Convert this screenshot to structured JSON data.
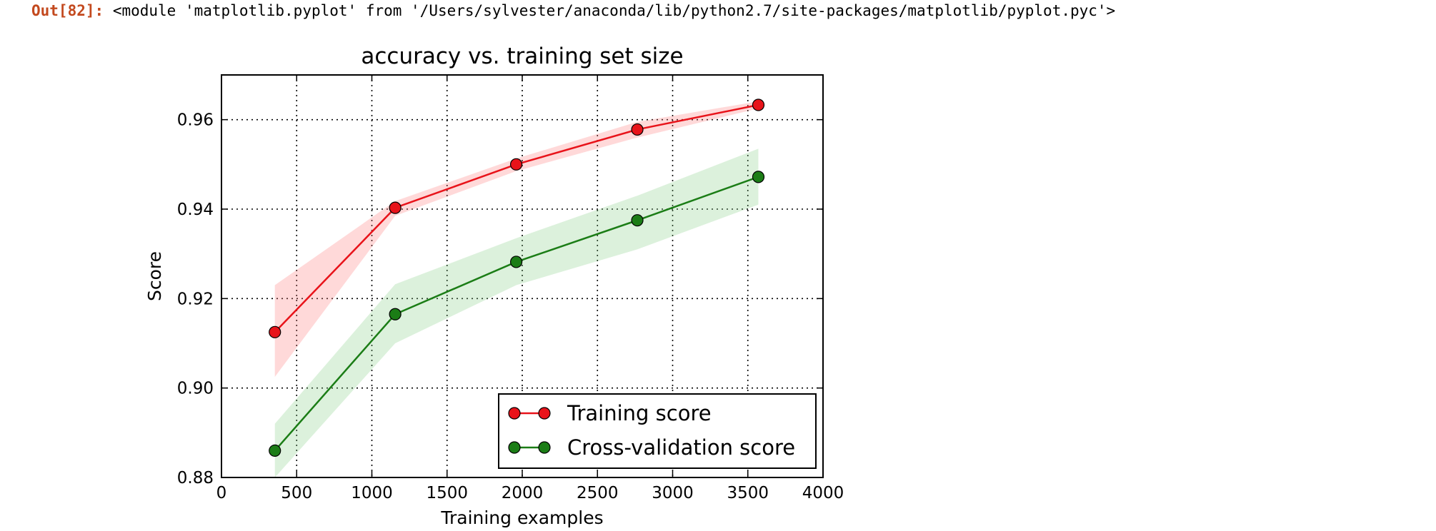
{
  "output": {
    "prompt": "Out[82]:",
    "repr": "<module 'matplotlib.pyplot' from '/Users/sylvester/anaconda/lib/python2.7/site-packages/matplotlib/pyplot.pyc'>"
  },
  "chart_data": {
    "type": "line",
    "title": "accuracy vs. training set size",
    "xlabel": "Training examples",
    "ylabel": "Score",
    "xlim": [
      0,
      4000
    ],
    "ylim": [
      0.88,
      0.97
    ],
    "xticks": [
      0,
      500,
      1000,
      1500,
      2000,
      2500,
      3000,
      3500,
      4000
    ],
    "yticks": [
      0.88,
      0.9,
      0.92,
      0.94,
      0.96
    ],
    "xtick_labels": [
      "0",
      "500",
      "1000",
      "1500",
      "2000",
      "2500",
      "3000",
      "3500",
      "4000"
    ],
    "ytick_labels": [
      "0.88",
      "0.90",
      "0.92",
      "0.94",
      "0.96"
    ],
    "grid": true,
    "legend_position": "lower-right",
    "x": [
      355,
      1155,
      1960,
      2765,
      3570
    ],
    "series": [
      {
        "name": "Training score",
        "color": "#e8131a",
        "band_color": "#ff8080",
        "values": [
          0.9125,
          0.9403,
          0.95,
          0.9578,
          0.9633
        ],
        "band_lower": [
          0.9025,
          0.9385,
          0.9485,
          0.956,
          0.9625
        ],
        "band_upper": [
          0.923,
          0.9418,
          0.9513,
          0.9595,
          0.9641
        ]
      },
      {
        "name": "Cross-validation score",
        "color": "#1b7d16",
        "band_color": "#8ccf8a",
        "values": [
          0.886,
          0.9165,
          0.9282,
          0.9375,
          0.9472
        ],
        "band_lower": [
          0.88,
          0.91,
          0.923,
          0.931,
          0.941
        ],
        "band_upper": [
          0.892,
          0.9232,
          0.9335,
          0.943,
          0.9535
        ]
      }
    ]
  }
}
